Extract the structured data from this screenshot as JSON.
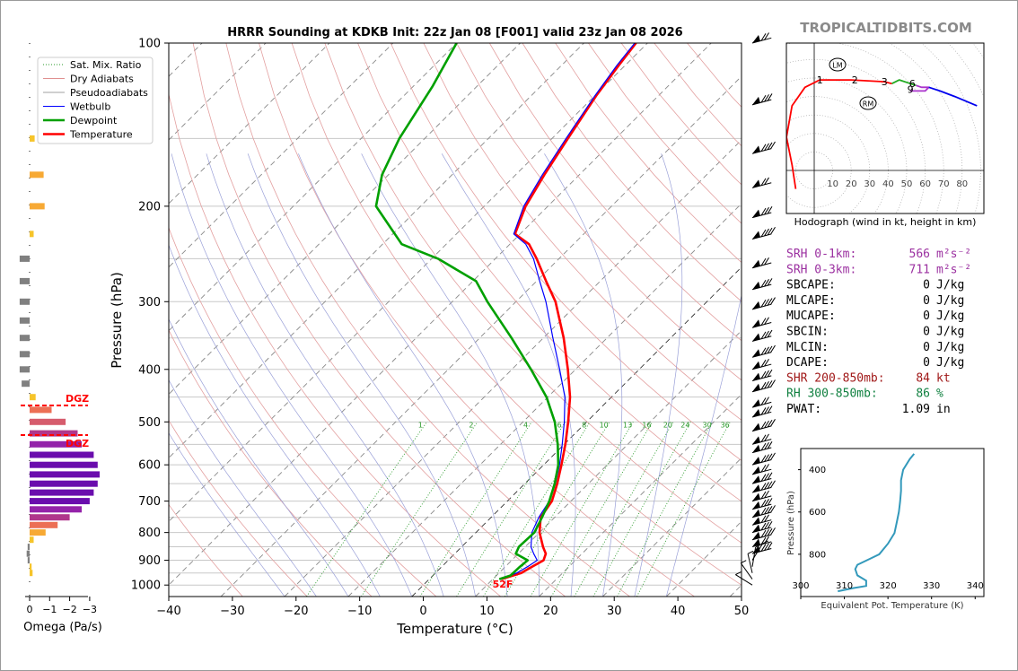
{
  "brand": "TROPICALTIDBITS.COM",
  "chart_data": [
    {
      "type": "line",
      "name": "skew-t",
      "title": "HRRR Sounding at KDKB Init: 22z Jan 08 [F001] valid 23z Jan 08 2026",
      "xlabel": "Temperature (°C)",
      "ylabel": "Pressure (hPa)",
      "xlim": [
        -40,
        50
      ],
      "ylim": [
        1050,
        100
      ],
      "x_ticks": [
        -40,
        -30,
        -20,
        -10,
        0,
        10,
        20,
        30,
        40,
        50
      ],
      "x_tick_labels": [
        "−40",
        "−30",
        "−20",
        "−10",
        "0",
        "10",
        "20",
        "30",
        "40",
        "50"
      ],
      "y_ticks": [
        100,
        200,
        300,
        400,
        500,
        600,
        700,
        800,
        900,
        1000
      ],
      "y_tick_labels": [
        "100",
        "200",
        "300",
        "400",
        "500",
        "600",
        "700",
        "800",
        "900",
        "1000"
      ],
      "mixing_ratio_labels": [
        "1",
        "2",
        "4",
        "6",
        "8",
        "10",
        "13",
        "16",
        "20",
        "24",
        "30",
        "36"
      ],
      "legend": {
        "position": "upper-left",
        "entries": [
          "Sat. Mix. Ratio",
          "Dry Adiabats",
          "Pseudoadiabats",
          "Wetbulb",
          "Dewpoint",
          "Temperature"
        ]
      },
      "surface_label": "52F",
      "series": [
        {
          "name": "Temperature",
          "color": "#ff0000",
          "points": [
            [
              975,
              11.3
            ],
            [
              950,
              13.5
            ],
            [
              925,
              14.2
            ],
            [
              900,
              15
            ],
            [
              875,
              14.3
            ],
            [
              850,
              12.8
            ],
            [
              800,
              10
            ],
            [
              750,
              7.8
            ],
            [
              700,
              7
            ],
            [
              650,
              5.1
            ],
            [
              600,
              2.8
            ],
            [
              550,
              0.2
            ],
            [
              500,
              -2.9
            ],
            [
              450,
              -6.5
            ],
            [
              400,
              -11.2
            ],
            [
              350,
              -16.8
            ],
            [
              300,
              -23.8
            ],
            [
              275,
              -28.5
            ],
            [
              250,
              -33.5
            ],
            [
              235,
              -37
            ],
            [
              225,
              -40.8
            ],
            [
              200,
              -43.5
            ],
            [
              175,
              -45.5
            ],
            [
              150,
              -47.5
            ],
            [
              125,
              -49.8
            ],
            [
              110,
              -51
            ],
            [
              100,
              -51.8
            ]
          ]
        },
        {
          "name": "Wetbulb",
          "color": "#0000ff",
          "points": [
            [
              975,
              11.2
            ],
            [
              950,
              12.8
            ],
            [
              925,
              13.5
            ],
            [
              900,
              14
            ],
            [
              875,
              12.4
            ],
            [
              850,
              10.9
            ],
            [
              800,
              8.8
            ],
            [
              750,
              7.5
            ],
            [
              700,
              6.6
            ],
            [
              650,
              4.8
            ],
            [
              600,
              2.5
            ],
            [
              550,
              -0.3
            ],
            [
              500,
              -3.5
            ],
            [
              450,
              -7.3
            ],
            [
              400,
              -12.5
            ],
            [
              350,
              -18.5
            ],
            [
              300,
              -25.3
            ],
            [
              275,
              -29.5
            ],
            [
              250,
              -34
            ],
            [
              235,
              -37.5
            ],
            [
              225,
              -41
            ],
            [
              200,
              -43.8
            ],
            [
              175,
              -45.8
            ],
            [
              150,
              -47.8
            ],
            [
              125,
              -50
            ],
            [
              110,
              -51.3
            ],
            [
              100,
              -52
            ]
          ]
        },
        {
          "name": "Dewpoint",
          "color": "#00a000",
          "points": [
            [
              975,
              11
            ],
            [
              960,
              12.2
            ],
            [
              925,
              12.3
            ],
            [
              900,
              12.5
            ],
            [
              875,
              9.6
            ],
            [
              850,
              9
            ],
            [
              800,
              9.2
            ],
            [
              750,
              8
            ],
            [
              700,
              6.6
            ],
            [
              650,
              4.7
            ],
            [
              600,
              2.3
            ],
            [
              550,
              -1
            ],
            [
              500,
              -5
            ],
            [
              450,
              -10.2
            ],
            [
              400,
              -17
            ],
            [
              350,
              -25
            ],
            [
              300,
              -34.5
            ],
            [
              275,
              -39.5
            ],
            [
              250,
              -49
            ],
            [
              235,
              -57
            ],
            [
              200,
              -67
            ],
            [
              175,
              -71
            ],
            [
              150,
              -74
            ],
            [
              120,
              -77
            ],
            [
              100,
              -80
            ]
          ]
        }
      ]
    },
    {
      "type": "bar",
      "name": "omega-profile",
      "xlabel": "Omega (Pa/s)",
      "x_ticks": [
        0,
        -1,
        -2,
        -3
      ],
      "x_tick_labels": [
        "0",
        "−1",
        "−2",
        "−3"
      ],
      "dgz_labels": [
        "DGZ",
        "DGZ"
      ],
      "pressures": [
        150,
        175,
        200,
        225,
        250,
        275,
        300,
        325,
        350,
        375,
        400,
        425,
        450,
        475,
        500,
        525,
        550,
        575,
        600,
        625,
        650,
        675,
        700,
        725,
        750,
        775,
        800,
        825,
        850,
        875,
        900,
        925,
        950
      ],
      "values": [
        -0.25,
        -0.7,
        -0.75,
        -0.2,
        0.5,
        0.5,
        0.5,
        0.5,
        0.5,
        0.5,
        0.5,
        0.4,
        -0.3,
        -1.1,
        -1.8,
        -2.4,
        -2.6,
        -3.2,
        -3.4,
        -3.5,
        -3.4,
        -3.2,
        -3.0,
        -2.6,
        -2.0,
        -1.4,
        -0.8,
        -0.2,
        0.1,
        0.15,
        0.1,
        -0.1,
        -0.15
      ]
    },
    {
      "type": "line",
      "name": "hodograph",
      "xlabel": "Hodograph (wind in kt, height in km)",
      "ring_labels": [
        "10",
        "20",
        "30",
        "40",
        "50",
        "60",
        "70",
        "80"
      ],
      "height_labels": [
        "1",
        "2",
        "3",
        "6",
        "9"
      ],
      "storm_motion_labels": [
        "LM",
        "RM"
      ],
      "segments": [
        {
          "name": "0-3 km",
          "color": "#ff0000",
          "points": [
            [
              -10,
              -10
            ],
            [
              -12,
              3
            ],
            [
              -15,
              18
            ],
            [
              -12,
              35
            ],
            [
              -5,
              45
            ],
            [
              3,
              49
            ],
            [
              20,
              49
            ],
            [
              38,
              48
            ],
            [
              42,
              47
            ]
          ]
        },
        {
          "name": "3-6 km",
          "color": "#22aa22",
          "points": [
            [
              42,
              47
            ],
            [
              46,
              49
            ],
            [
              52,
              47
            ],
            [
              55,
              46
            ]
          ]
        },
        {
          "name": "6-9 km",
          "color": "#aa33cc",
          "points": [
            [
              55,
              46
            ],
            [
              58,
              45
            ],
            [
              62,
              45
            ],
            [
              60,
              43
            ],
            [
              55,
              43
            ],
            [
              52,
              43
            ]
          ]
        },
        {
          "name": "9+ km",
          "color": "#0000ee",
          "points": [
            [
              62,
              45
            ],
            [
              68,
              43
            ],
            [
              76,
              40
            ],
            [
              88,
              35
            ]
          ]
        }
      ]
    },
    {
      "type": "line",
      "name": "theta-e-profile",
      "xlabel": "Equivalent Pot. Temperature (K)",
      "ylabel": "Pressure (hPa)",
      "xlim": [
        300,
        342
      ],
      "ylim": [
        1000,
        300
      ],
      "x_ticks": [
        300,
        310,
        320,
        330,
        340
      ],
      "x_tick_labels": [
        "300",
        "310",
        "320",
        "330",
        "340"
      ],
      "y_ticks": [
        400,
        600,
        800
      ],
      "y_tick_labels": [
        "400",
        "600",
        "800"
      ],
      "color": "#3399bb",
      "points": [
        [
          975,
          308.5
        ],
        [
          960,
          312
        ],
        [
          950,
          315
        ],
        [
          925,
          315
        ],
        [
          900,
          313
        ],
        [
          870,
          312.5
        ],
        [
          850,
          313
        ],
        [
          820,
          316
        ],
        [
          800,
          318
        ],
        [
          750,
          320
        ],
        [
          700,
          321.5
        ],
        [
          650,
          322
        ],
        [
          600,
          322.5
        ],
        [
          550,
          322.8
        ],
        [
          500,
          323
        ],
        [
          450,
          323
        ],
        [
          400,
          323.5
        ],
        [
          350,
          325
        ],
        [
          325,
          326
        ]
      ]
    }
  ],
  "indices": [
    {
      "label": "SRH 0-1km:",
      "value": "566",
      "unit": "m²s⁻²",
      "color": "#9b30a0"
    },
    {
      "label": "SRH 0-3km:",
      "value": "711",
      "unit": "m²s⁻²",
      "color": "#9b30a0"
    },
    {
      "label": "SBCAPE:",
      "value": "0",
      "unit": "J/kg",
      "color": "#000000"
    },
    {
      "label": "MLCAPE:",
      "value": "0",
      "unit": "J/kg",
      "color": "#000000"
    },
    {
      "label": "MUCAPE:",
      "value": "0",
      "unit": "J/kg",
      "color": "#000000"
    },
    {
      "label": "SBCIN:",
      "value": "0",
      "unit": "J/kg",
      "color": "#000000"
    },
    {
      "label": "MLCIN:",
      "value": "0",
      "unit": "J/kg",
      "color": "#000000"
    },
    {
      "label": "DCAPE:",
      "value": "0",
      "unit": "J/kg",
      "color": "#000000"
    },
    {
      "label": "SHR 200-850mb:",
      "value": "84",
      "unit": "kt",
      "color": "#a01818"
    },
    {
      "label": "RH 300-850mb:",
      "value": "86",
      "unit": "%",
      "color": "#108040"
    },
    {
      "label": "PWAT:",
      "value": "1.09",
      "unit": "in",
      "color": "#000000"
    }
  ]
}
